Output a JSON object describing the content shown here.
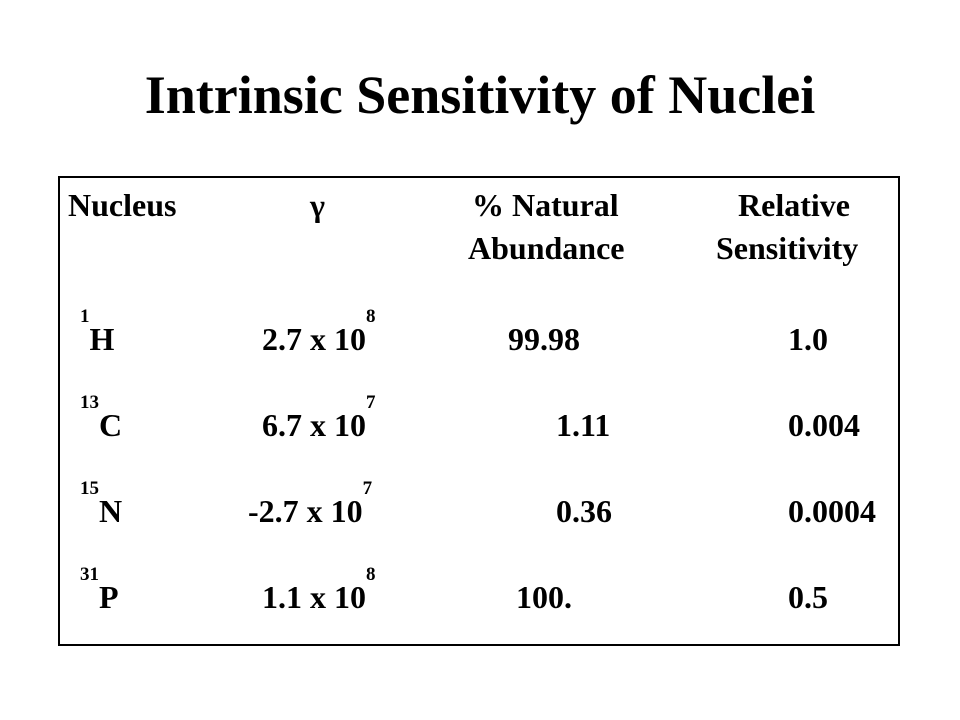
{
  "title": "Intrinsic Sensitivity of Nuclei",
  "table": {
    "headers": {
      "nucleus": "Nucleus",
      "gamma": "γ",
      "abundance_line1": "% Natural",
      "abundance_line2": "Abundance",
      "sensitivity_line1": "Relative",
      "sensitivity_line2": "Sensitivity"
    },
    "rows": [
      {
        "mass": "1",
        "symbol": "H",
        "gamma_base": "2.7 x 10",
        "gamma_exp": "8",
        "abundance": "99.98",
        "sensitivity": "1.0"
      },
      {
        "mass": "13",
        "symbol": "C",
        "gamma_base": "6.7 x 10",
        "gamma_exp": "7",
        "abundance": "1.11",
        "sensitivity": "0.004"
      },
      {
        "mass": "15",
        "symbol": "N",
        "gamma_base": "-2.7 x 10",
        "gamma_exp": "7",
        "abundance": "0.36",
        "sensitivity": "0.0004"
      },
      {
        "mass": "31",
        "symbol": "P",
        "gamma_base": "1.1 x 10",
        "gamma_exp": "8",
        "abundance": "100.",
        "sensitivity": "0.5"
      }
    ]
  }
}
